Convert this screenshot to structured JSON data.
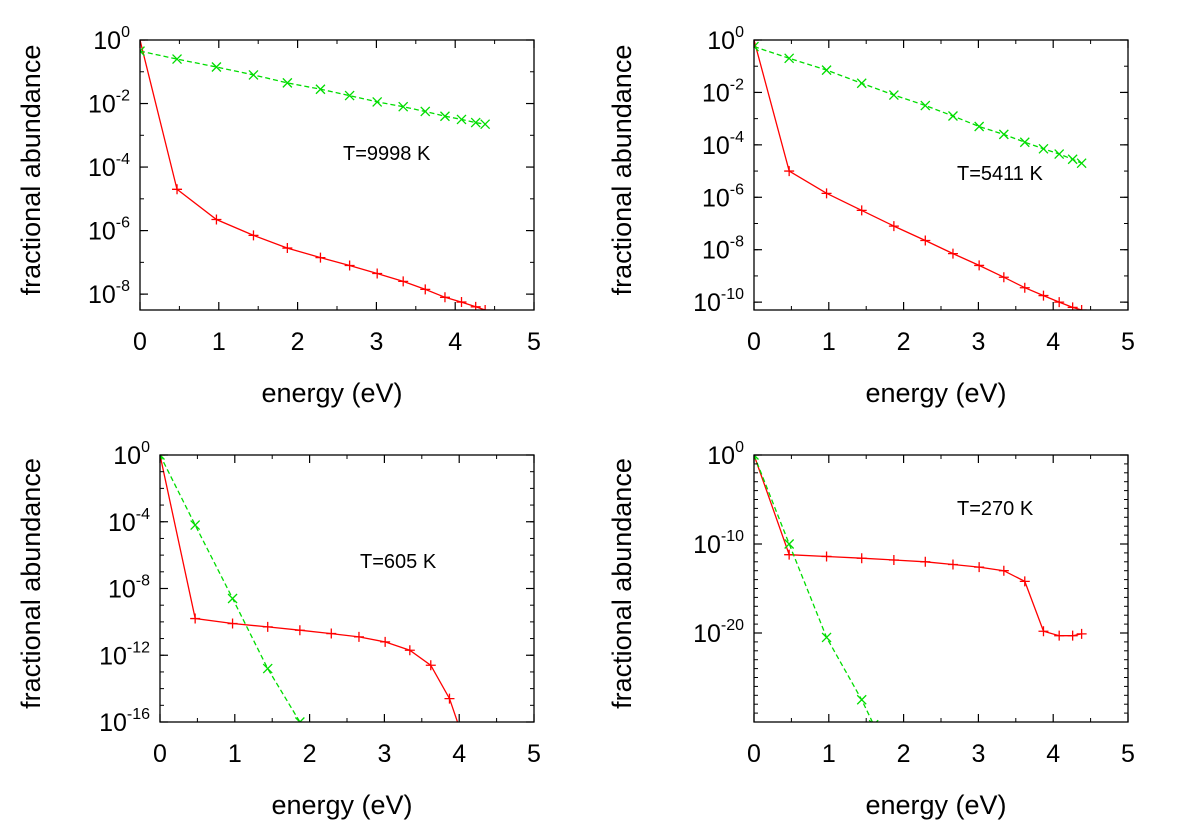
{
  "chart_data": [
    {
      "type": "line",
      "title": "",
      "xlabel": "energy (eV)",
      "ylabel": "fractional abundance",
      "xlim": [
        0,
        5
      ],
      "ylim_log10": [
        -8.5,
        0
      ],
      "yscale": "log",
      "grid": false,
      "annotation": "T=9998 K",
      "x_ticks": [
        "0",
        "1",
        "2",
        "3",
        "4",
        "5"
      ],
      "y_ticks": [
        {
          "base": "10",
          "exp": "0",
          "log": 0
        },
        {
          "base": "10",
          "exp": "-2",
          "log": -2
        },
        {
          "base": "10",
          "exp": "-4",
          "log": -4
        },
        {
          "base": "10",
          "exp": "-6",
          "log": -6
        },
        {
          "base": "10",
          "exp": "-8",
          "log": -8
        }
      ],
      "series": [
        {
          "color": "#ff0000",
          "dash": "solid",
          "marker": "plus",
          "x": [
            0,
            0.47,
            0.97,
            1.44,
            1.87,
            2.29,
            2.66,
            3.01,
            3.34,
            3.62,
            3.87,
            4.08,
            4.26,
            4.38
          ],
          "y_log10": [
            0,
            -4.7,
            -5.65,
            -6.15,
            -6.55,
            -6.85,
            -7.1,
            -7.35,
            -7.6,
            -7.85,
            -8.1,
            -8.25,
            -8.4,
            -8.5
          ]
        },
        {
          "color": "#00dd00",
          "dash": "dashed",
          "marker": "x",
          "x": [
            0,
            0.47,
            0.97,
            1.44,
            1.87,
            2.29,
            2.66,
            3.01,
            3.34,
            3.62,
            3.87,
            4.08,
            4.26,
            4.38
          ],
          "y_log10": [
            -0.35,
            -0.6,
            -0.85,
            -1.1,
            -1.35,
            -1.55,
            -1.75,
            -1.95,
            -2.1,
            -2.25,
            -2.4,
            -2.5,
            -2.6,
            -2.65
          ]
        }
      ]
    },
    {
      "type": "line",
      "title": "",
      "xlabel": "energy (eV)",
      "ylabel": "fractional abundance",
      "xlim": [
        0,
        5
      ],
      "ylim_log10": [
        -10.3,
        0
      ],
      "yscale": "log",
      "grid": false,
      "annotation": "T=5411 K",
      "x_ticks": [
        "0",
        "1",
        "2",
        "3",
        "4",
        "5"
      ],
      "y_ticks": [
        {
          "base": "10",
          "exp": "0",
          "log": 0
        },
        {
          "base": "10",
          "exp": "-2",
          "log": -2
        },
        {
          "base": "10",
          "exp": "-4",
          "log": -4
        },
        {
          "base": "10",
          "exp": "-6",
          "log": -6
        },
        {
          "base": "10",
          "exp": "-8",
          "log": -8
        },
        {
          "base": "10",
          "exp": "-10",
          "log": -10
        }
      ],
      "series": [
        {
          "color": "#ff0000",
          "dash": "solid",
          "marker": "plus",
          "x": [
            0,
            0.47,
            0.97,
            1.44,
            1.87,
            2.29,
            2.66,
            3.01,
            3.34,
            3.62,
            3.87,
            4.08,
            4.26,
            4.38
          ],
          "y_log10": [
            0,
            -5.0,
            -5.85,
            -6.5,
            -7.1,
            -7.65,
            -8.15,
            -8.6,
            -9.05,
            -9.45,
            -9.75,
            -10.0,
            -10.2,
            -10.3
          ]
        },
        {
          "color": "#00dd00",
          "dash": "dashed",
          "marker": "x",
          "x": [
            0,
            0.47,
            0.97,
            1.44,
            1.87,
            2.29,
            2.66,
            3.01,
            3.34,
            3.62,
            3.87,
            4.08,
            4.26,
            4.38
          ],
          "y_log10": [
            -0.25,
            -0.7,
            -1.15,
            -1.65,
            -2.1,
            -2.5,
            -2.9,
            -3.3,
            -3.6,
            -3.9,
            -4.15,
            -4.35,
            -4.55,
            -4.7
          ]
        }
      ]
    },
    {
      "type": "line",
      "title": "",
      "xlabel": "energy (eV)",
      "ylabel": "fractional abundance",
      "xlim": [
        0,
        5
      ],
      "ylim_log10": [
        -16,
        0
      ],
      "yscale": "log",
      "grid": false,
      "annotation": "T=605 K",
      "x_ticks": [
        "0",
        "1",
        "2",
        "3",
        "4",
        "5"
      ],
      "y_ticks": [
        {
          "base": "10",
          "exp": "0",
          "log": 0
        },
        {
          "base": "10",
          "exp": "-4",
          "log": -4
        },
        {
          "base": "10",
          "exp": "-8",
          "log": -8
        },
        {
          "base": "10",
          "exp": "-12",
          "log": -12
        },
        {
          "base": "10",
          "exp": "-16",
          "log": -16
        }
      ],
      "series": [
        {
          "color": "#ff0000",
          "dash": "solid",
          "marker": "plus",
          "x": [
            0,
            0.47,
            0.97,
            1.44,
            1.87,
            2.29,
            2.66,
            3.01,
            3.34,
            3.62,
            3.87,
            4.0
          ],
          "y_log10": [
            0,
            -9.8,
            -10.1,
            -10.3,
            -10.5,
            -10.7,
            -10.9,
            -11.2,
            -11.7,
            -12.6,
            -14.6,
            -16.3
          ]
        },
        {
          "color": "#00dd00",
          "dash": "dashed",
          "marker": "x",
          "x": [
            0,
            0.47,
            0.97,
            1.44,
            1.87,
            1.92
          ],
          "y_log10": [
            0,
            -4.2,
            -8.6,
            -12.8,
            -16.0,
            -16.3
          ]
        }
      ]
    },
    {
      "type": "line",
      "title": "",
      "xlabel": "energy (eV)",
      "ylabel": "fractional abundance",
      "xlim": [
        0,
        5
      ],
      "ylim_log10": [
        -30,
        0
      ],
      "yscale": "log",
      "grid": false,
      "annotation": "T=270 K",
      "x_ticks": [
        "0",
        "1",
        "2",
        "3",
        "4",
        "5"
      ],
      "y_ticks": [
        {
          "base": "10",
          "exp": "0",
          "log": 0
        },
        {
          "base": "10",
          "exp": "-10",
          "log": -10
        },
        {
          "base": "10",
          "exp": "-20",
          "log": -20
        }
      ],
      "series": [
        {
          "color": "#ff0000",
          "dash": "solid",
          "marker": "plus",
          "x": [
            0,
            0.47,
            0.97,
            1.44,
            1.87,
            2.29,
            2.66,
            3.01,
            3.34,
            3.62,
            3.87,
            4.08,
            4.26,
            4.38
          ],
          "y_log10": [
            0,
            -11.2,
            -11.4,
            -11.6,
            -11.8,
            -12.0,
            -12.3,
            -12.6,
            -13.0,
            -14.2,
            -19.8,
            -20.3,
            -20.3,
            -20.1
          ]
        },
        {
          "color": "#00dd00",
          "dash": "dashed",
          "marker": "x",
          "x": [
            0,
            0.47,
            0.97,
            1.44,
            1.6
          ],
          "y_log10": [
            0,
            -10.0,
            -20.5,
            -27.5,
            -30.3
          ]
        }
      ]
    }
  ]
}
